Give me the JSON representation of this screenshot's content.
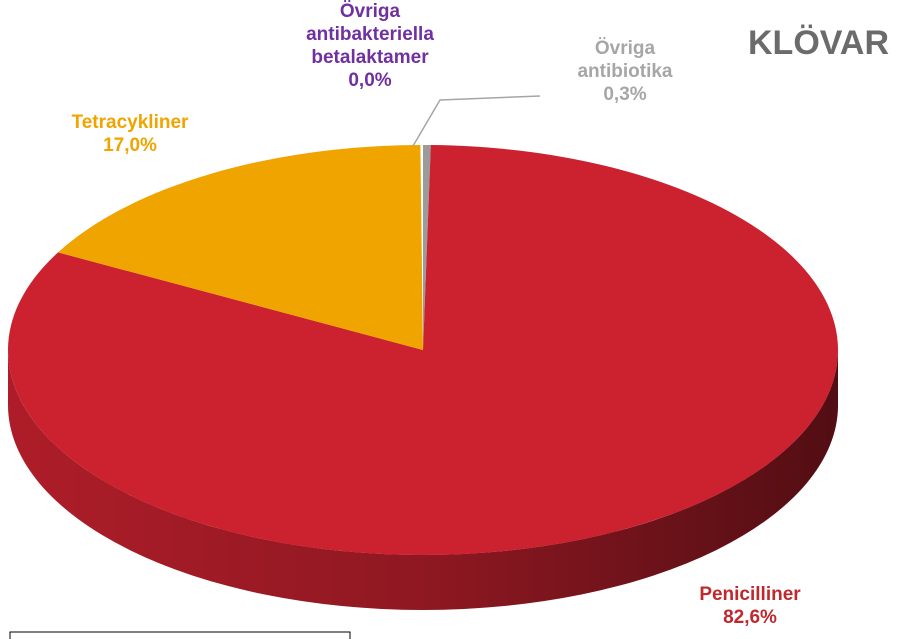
{
  "chart_data": {
    "type": "pie",
    "title": "KLÖVAR",
    "categories": [
      "Övriga antibiotika",
      "Penicilliner",
      "Tetracykliner",
      "Övriga antibakteriella betalaktamer"
    ],
    "values": [
      0.3,
      82.6,
      17.0,
      0.0
    ],
    "value_labels": [
      "0,3%",
      "82,6%",
      "17,0%",
      "0,0%"
    ],
    "colors": [
      "#9b9b9b",
      "#cc2230",
      "#f0a400",
      "#7030a0"
    ],
    "label_colors": [
      "#a6a6a6",
      "#c0282e",
      "#f0a400",
      "#7030a0"
    ]
  }
}
